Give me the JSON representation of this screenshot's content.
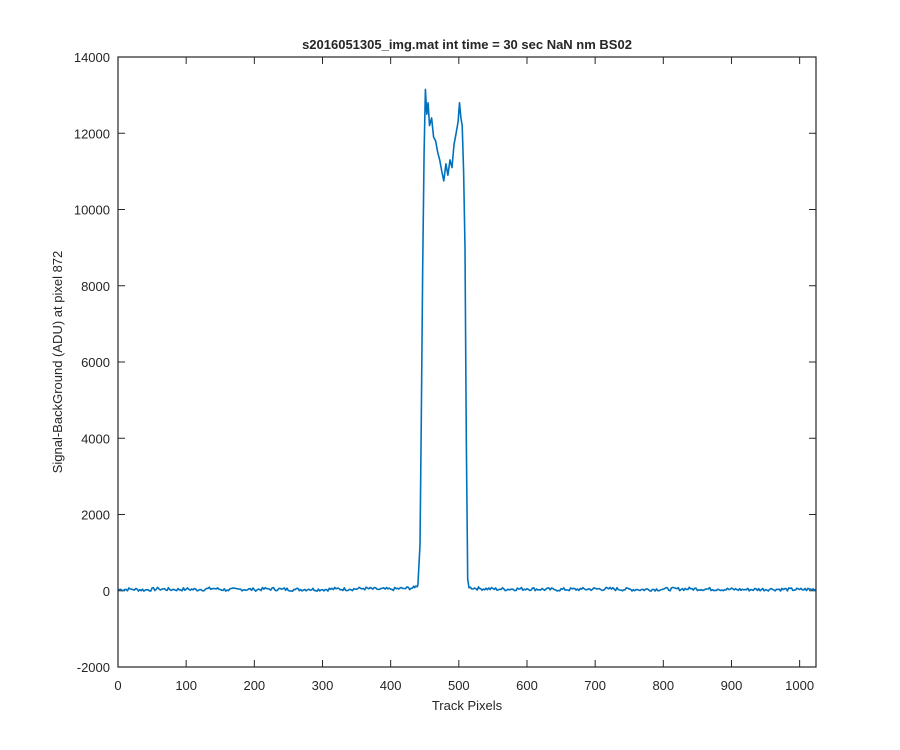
{
  "chart_data": {
    "type": "line",
    "title": "s2016051305_img.mat int time = 30 sec  NaN nm BS02",
    "xlabel": "Track Pixels",
    "ylabel": "Signal-BackGround (ADU) at pixel 872",
    "xlim": [
      0,
      1024
    ],
    "ylim": [
      -2000,
      14000
    ],
    "xticks": [
      0,
      100,
      200,
      300,
      400,
      500,
      600,
      700,
      800,
      900,
      1000
    ],
    "yticks": [
      -2000,
      0,
      2000,
      4000,
      6000,
      8000,
      10000,
      12000,
      14000
    ],
    "grid": false,
    "line_color": "#0072BD",
    "series": [
      {
        "x": [
          0,
          20,
          40,
          60,
          80,
          100,
          120,
          140,
          160,
          180,
          200,
          220,
          240,
          260,
          280,
          300,
          320,
          340,
          360,
          380,
          400,
          420,
          435,
          440,
          443,
          445,
          447,
          449,
          451,
          453,
          455,
          457,
          460,
          463,
          466,
          469,
          472,
          475,
          478,
          481,
          484,
          487,
          490,
          493,
          496,
          499,
          501,
          503,
          505,
          507,
          509,
          511,
          513,
          515,
          530,
          560,
          600,
          640,
          680,
          720,
          760,
          800,
          840,
          880,
          920,
          960,
          1000,
          1024
        ],
        "y": [
          30,
          40,
          20,
          50,
          30,
          40,
          30,
          60,
          20,
          40,
          30,
          50,
          40,
          30,
          40,
          30,
          50,
          40,
          60,
          40,
          40,
          60,
          80,
          150,
          1200,
          4500,
          8500,
          11500,
          13150,
          12500,
          12800,
          12200,
          12400,
          11900,
          11800,
          11500,
          11300,
          11000,
          10750,
          11200,
          10900,
          11300,
          11100,
          11700,
          12000,
          12300,
          12800,
          12400,
          12200,
          11000,
          9000,
          4000,
          300,
          80,
          60,
          40,
          50,
          30,
          40,
          50,
          30,
          40,
          50,
          40,
          30,
          40,
          30,
          40
        ]
      }
    ]
  }
}
